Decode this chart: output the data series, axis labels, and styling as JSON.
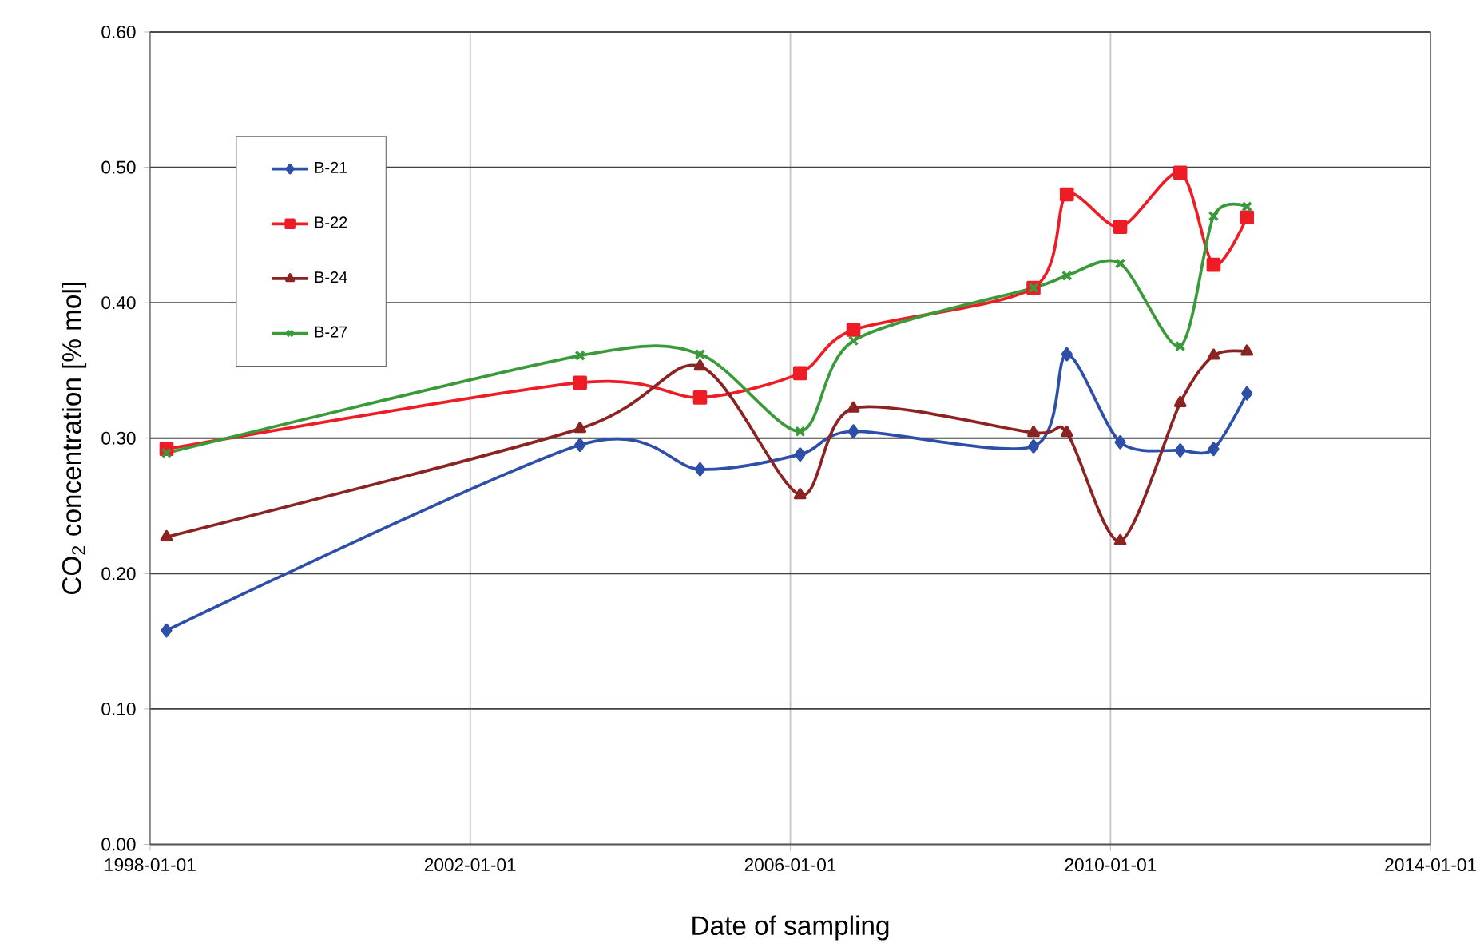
{
  "chart_data": {
    "type": "line",
    "xlabel": "Date of sampling",
    "ylabel": "CO$_{2}$ concentration [% mol]",
    "x": [
      "1998-03-15",
      "2003-05-15",
      "2004-11-15",
      "2006-02-15",
      "2006-10-15",
      "2009-01-15",
      "2009-06-15",
      "2010-02-15",
      "2010-11-15",
      "2011-04-15",
      "2011-09-15"
    ],
    "series": [
      {
        "name": "B-21",
        "color": "#2e4fa8",
        "marker": "diamond",
        "values": [
          0.158,
          0.295,
          0.277,
          0.288,
          0.305,
          0.294,
          0.362,
          0.297,
          0.291,
          0.292,
          0.333
        ]
      },
      {
        "name": "B-22",
        "color": "#ee1c25",
        "marker": "square",
        "values": [
          0.292,
          0.341,
          0.33,
          0.348,
          0.38,
          0.411,
          0.48,
          0.456,
          0.496,
          0.428,
          0.463
        ]
      },
      {
        "name": "B-24",
        "color": "#8b2323",
        "marker": "triangle",
        "values": [
          0.227,
          0.307,
          0.353,
          0.258,
          0.322,
          0.304,
          0.304,
          0.224,
          0.326,
          0.361,
          0.364
        ]
      },
      {
        "name": "B-27",
        "color": "#3a9a3a",
        "marker": "cross",
        "values": [
          0.289,
          0.361,
          0.362,
          0.305,
          0.372,
          0.411,
          0.42,
          0.429,
          0.368,
          0.464,
          0.471
        ]
      }
    ],
    "xlim": [
      "1998-01-01",
      "2014-01-01"
    ],
    "xticks": [
      "1998-01-01",
      "2002-01-01",
      "2006-01-01",
      "2010-01-01",
      "2014-01-01"
    ],
    "ylim": [
      0,
      0.6
    ],
    "yticks": [
      {
        "value": 0,
        "label": "0.00"
      },
      {
        "value": 0.1,
        "label": "0.10"
      },
      {
        "value": 0.2,
        "label": "0.20"
      },
      {
        "value": 0.3,
        "label": "0.30"
      },
      {
        "value": 0.4,
        "label": "0.40"
      },
      {
        "value": 0.5,
        "label": "0.50"
      },
      {
        "value": 0.6,
        "label": "0.60"
      }
    ],
    "grid": true,
    "legend": "top left",
    "line_style": "solid"
  }
}
